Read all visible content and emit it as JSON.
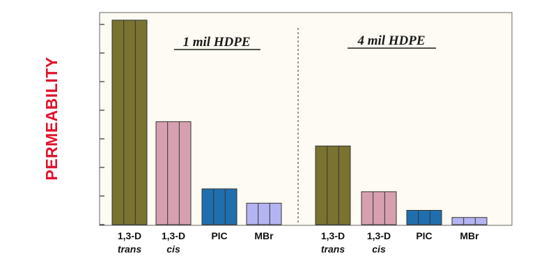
{
  "chart_data": {
    "type": "bar",
    "ylabel": "PERMEABILITY",
    "ylim": [
      0,
      7
    ],
    "y_ticks": [
      0,
      1,
      2,
      3,
      4,
      5,
      6,
      7
    ],
    "y_tick_labels": false,
    "grid": false,
    "legend": "none",
    "groups": [
      {
        "title": "1 mil HDPE",
        "bars": [
          {
            "label_line1": "1,3-D",
            "label_line2": "trans",
            "value": 7.15,
            "color": "#7a7230"
          },
          {
            "label_line1": "1,3-D",
            "label_line2": "cis",
            "value": 3.6,
            "color": "#d7a0b0"
          },
          {
            "label_line1": "PIC",
            "label_line2": "",
            "value": 1.25,
            "color": "#1f6fae"
          },
          {
            "label_line1": "MBr",
            "label_line2": "",
            "value": 0.75,
            "color": "#b4b4f2"
          }
        ]
      },
      {
        "title": "4 mil HDPE",
        "bars": [
          {
            "label_line1": "1,3-D",
            "label_line2": "trans",
            "value": 2.75,
            "color": "#7a7230"
          },
          {
            "label_line1": "1,3-D",
            "label_line2": "cis",
            "value": 1.15,
            "color": "#d7a0b0"
          },
          {
            "label_line1": "PIC",
            "label_line2": "",
            "value": 0.5,
            "color": "#1f6fae"
          },
          {
            "label_line1": "MBr",
            "label_line2": "",
            "value": 0.25,
            "color": "#b4b4f2"
          }
        ]
      }
    ]
  },
  "colors": {
    "plot_background": "#fdfbf3",
    "axis": "#333333",
    "ylabel": "#e0142c"
  }
}
